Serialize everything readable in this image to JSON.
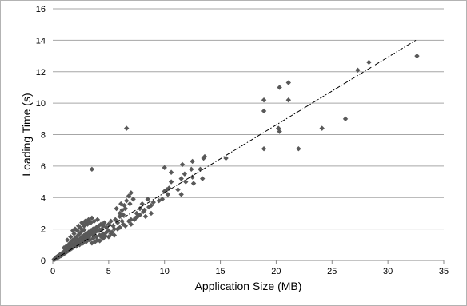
{
  "chart_data": {
    "type": "scatter",
    "title": "",
    "xlabel": "Application Size (MB)",
    "ylabel": "Loading Time (s)",
    "xlim": [
      0,
      35
    ],
    "ylim": [
      0,
      16
    ],
    "xticks": [
      0,
      5,
      10,
      15,
      20,
      25,
      30,
      35
    ],
    "yticks": [
      0,
      2,
      4,
      6,
      8,
      10,
      12,
      14,
      16
    ],
    "grid": "horizontal",
    "legend": "none",
    "marker": "diamond",
    "marker_color": "#595959",
    "trendline": {
      "type": "linear",
      "style": "dash-dot",
      "color": "#000000",
      "x": [
        0,
        32.5
      ],
      "y": [
        0,
        14.0
      ]
    },
    "series": [
      {
        "values": [
          [
            0.1,
            0.05
          ],
          [
            0.15,
            0.1
          ],
          [
            0.2,
            0.08
          ],
          [
            0.25,
            0.15
          ],
          [
            0.3,
            0.2
          ],
          [
            0.35,
            0.12
          ],
          [
            0.4,
            0.25
          ],
          [
            0.45,
            0.2
          ],
          [
            0.5,
            0.3
          ],
          [
            0.55,
            0.22
          ],
          [
            0.6,
            0.35
          ],
          [
            0.65,
            0.28
          ],
          [
            0.7,
            0.4
          ],
          [
            0.75,
            0.3
          ],
          [
            0.8,
            0.45
          ],
          [
            0.85,
            0.35
          ],
          [
            0.9,
            0.5
          ],
          [
            0.95,
            0.4
          ],
          [
            1.0,
            0.55
          ],
          [
            1.05,
            0.45
          ],
          [
            1.1,
            0.6
          ],
          [
            1.15,
            0.5
          ],
          [
            1.2,
            0.65
          ],
          [
            1.25,
            0.55
          ],
          [
            1.3,
            0.7
          ],
          [
            1.35,
            0.6
          ],
          [
            1.4,
            0.75
          ],
          [
            1.45,
            0.65
          ],
          [
            1.5,
            0.8
          ],
          [
            1.55,
            0.7
          ],
          [
            1.6,
            0.9
          ],
          [
            1.65,
            0.75
          ],
          [
            1.7,
            1.0
          ],
          [
            1.75,
            0.8
          ],
          [
            1.8,
            0.95
          ],
          [
            1.85,
            0.85
          ],
          [
            1.9,
            1.05
          ],
          [
            1.95,
            0.9
          ],
          [
            2.0,
            1.1
          ],
          [
            2.05,
            0.95
          ],
          [
            2.1,
            1.2
          ],
          [
            2.15,
            1.0
          ],
          [
            2.2,
            1.3
          ],
          [
            2.25,
            1.05
          ],
          [
            2.3,
            1.25
          ],
          [
            2.35,
            1.1
          ],
          [
            2.4,
            1.35
          ],
          [
            2.45,
            1.15
          ],
          [
            2.5,
            1.4
          ],
          [
            2.55,
            1.2
          ],
          [
            2.6,
            1.5
          ],
          [
            2.65,
            1.25
          ],
          [
            2.7,
            1.45
          ],
          [
            2.75,
            1.3
          ],
          [
            2.8,
            1.6
          ],
          [
            2.85,
            1.35
          ],
          [
            2.9,
            1.55
          ],
          [
            2.95,
            1.4
          ],
          [
            3.0,
            1.7
          ],
          [
            3.05,
            1.45
          ],
          [
            3.1,
            1.65
          ],
          [
            3.15,
            1.5
          ],
          [
            3.2,
            1.8
          ],
          [
            3.25,
            1.55
          ],
          [
            3.3,
            1.75
          ],
          [
            3.35,
            1.6
          ],
          [
            3.4,
            1.9
          ],
          [
            3.45,
            1.65
          ],
          [
            3.5,
            1.85
          ],
          [
            3.55,
            1.7
          ],
          [
            3.6,
            2.0
          ],
          [
            3.65,
            1.75
          ],
          [
            3.7,
            1.95
          ],
          [
            3.8,
            1.8
          ],
          [
            3.9,
            2.1
          ],
          [
            4.0,
            1.9
          ],
          [
            4.1,
            2.2
          ],
          [
            4.2,
            1.95
          ],
          [
            4.3,
            2.3
          ],
          [
            4.4,
            2.0
          ],
          [
            1.0,
            0.8
          ],
          [
            1.2,
            0.9
          ],
          [
            1.4,
            1.0
          ],
          [
            1.6,
            1.15
          ],
          [
            1.8,
            1.3
          ],
          [
            2.0,
            1.4
          ],
          [
            2.2,
            1.55
          ],
          [
            2.4,
            1.7
          ],
          [
            2.6,
            1.85
          ],
          [
            2.8,
            1.95
          ],
          [
            1.3,
            1.3
          ],
          [
            1.6,
            1.5
          ],
          [
            1.9,
            1.7
          ],
          [
            2.2,
            1.9
          ],
          [
            2.5,
            2.05
          ],
          [
            2.8,
            2.2
          ],
          [
            3.1,
            2.3
          ],
          [
            3.4,
            2.4
          ],
          [
            3.7,
            2.5
          ],
          [
            4.0,
            2.6
          ],
          [
            2.0,
            2.0
          ],
          [
            2.3,
            2.2
          ],
          [
            2.6,
            2.4
          ],
          [
            2.9,
            2.5
          ],
          [
            3.2,
            2.6
          ],
          [
            3.5,
            2.7
          ],
          [
            1.8,
            1.9
          ],
          [
            2.7,
            2.3
          ],
          [
            3.3,
            2.5
          ],
          [
            3.0,
            2.4
          ],
          [
            2.1,
            0.9
          ],
          [
            2.4,
            1.0
          ],
          [
            2.7,
            1.1
          ],
          [
            3.0,
            1.2
          ],
          [
            3.3,
            1.3
          ],
          [
            3.6,
            1.4
          ],
          [
            3.9,
            1.5
          ],
          [
            4.2,
            1.6
          ],
          [
            4.5,
            1.7
          ],
          [
            4.8,
            1.8
          ],
          [
            3.5,
            1.1
          ],
          [
            4.0,
            1.3
          ],
          [
            4.5,
            1.4
          ],
          [
            5.0,
            1.5
          ],
          [
            5.5,
            1.6
          ],
          [
            4.2,
            1.25
          ],
          [
            4.7,
            1.55
          ],
          [
            5.2,
            1.7
          ],
          [
            3.8,
            1.2
          ],
          [
            4.4,
            1.45
          ],
          [
            4.5,
            2.2
          ],
          [
            4.6,
            2.4
          ],
          [
            4.8,
            2.1
          ],
          [
            5.0,
            2.3
          ],
          [
            5.2,
            2.5
          ],
          [
            5.4,
            2.2
          ],
          [
            5.6,
            2.6
          ],
          [
            5.8,
            2.4
          ],
          [
            6.0,
            2.8
          ],
          [
            6.2,
            2.5
          ],
          [
            5.0,
            1.9
          ],
          [
            5.5,
            2.0
          ],
          [
            6.0,
            2.1
          ],
          [
            6.5,
            2.2
          ],
          [
            7.0,
            2.3
          ],
          [
            5.3,
            1.8
          ],
          [
            5.8,
            2.0
          ],
          [
            6.3,
            2.3
          ],
          [
            6.8,
            2.5
          ],
          [
            7.3,
            2.6
          ],
          [
            6.0,
            3.0
          ],
          [
            6.2,
            3.2
          ],
          [
            6.4,
            3.5
          ],
          [
            6.6,
            3.8
          ],
          [
            6.8,
            4.1
          ],
          [
            7.0,
            4.3
          ],
          [
            6.5,
            3.3
          ],
          [
            6.9,
            3.6
          ],
          [
            7.2,
            3.9
          ],
          [
            6.3,
            2.9
          ],
          [
            7.5,
            3.0
          ],
          [
            7.8,
            3.3
          ],
          [
            8.0,
            3.6
          ],
          [
            8.2,
            3.2
          ],
          [
            8.5,
            3.9
          ],
          [
            8.8,
            3.5
          ],
          [
            7.6,
            2.8
          ],
          [
            8.1,
            3.1
          ],
          [
            8.6,
            3.4
          ],
          [
            9.0,
            3.7
          ],
          [
            7.0,
            2.6
          ],
          [
            7.4,
            2.7
          ],
          [
            7.8,
            2.9
          ],
          [
            8.3,
            2.8
          ],
          [
            8.8,
            3.0
          ],
          [
            5.7,
            3.3
          ],
          [
            6.1,
            3.6
          ],
          [
            3.5,
            5.8
          ],
          [
            6.6,
            8.4
          ],
          [
            9.5,
            3.8
          ],
          [
            9.8,
            3.9
          ],
          [
            10.0,
            4.4
          ],
          [
            10.2,
            4.5
          ],
          [
            10.4,
            4.6
          ],
          [
            10.6,
            5.0
          ],
          [
            10.0,
            5.9
          ],
          [
            10.6,
            5.6
          ],
          [
            10.3,
            4.2
          ],
          [
            11.2,
            4.5
          ],
          [
            11.5,
            4.2
          ],
          [
            11.5,
            5.2
          ],
          [
            11.8,
            5.5
          ],
          [
            11.6,
            6.1
          ],
          [
            11.9,
            5.0
          ],
          [
            12.5,
            5.3
          ],
          [
            12.4,
            5.8
          ],
          [
            12.5,
            6.3
          ],
          [
            12.6,
            4.9
          ],
          [
            13.4,
            5.2
          ],
          [
            13.5,
            6.5
          ],
          [
            13.6,
            6.6
          ],
          [
            13.2,
            5.8
          ],
          [
            15.5,
            6.5
          ],
          [
            18.9,
            10.2
          ],
          [
            18.9,
            9.5
          ],
          [
            18.9,
            7.1
          ],
          [
            20.2,
            8.4
          ],
          [
            20.3,
            8.2
          ],
          [
            20.3,
            11.0
          ],
          [
            21.1,
            10.2
          ],
          [
            21.1,
            11.3
          ],
          [
            22.0,
            7.1
          ],
          [
            24.1,
            8.4
          ],
          [
            26.2,
            9.0
          ],
          [
            27.3,
            12.1
          ],
          [
            28.3,
            12.6
          ],
          [
            32.6,
            13.0
          ]
        ]
      }
    ]
  }
}
